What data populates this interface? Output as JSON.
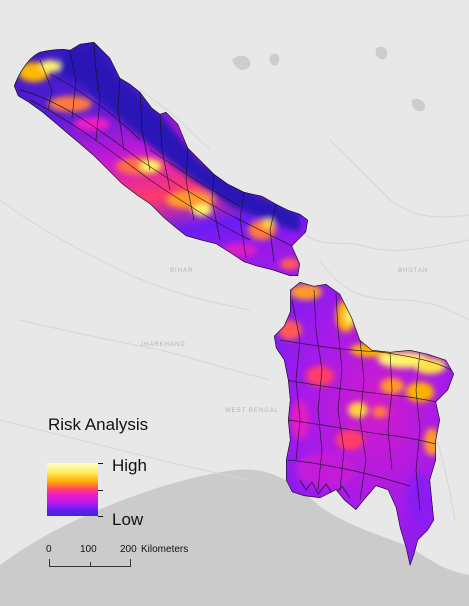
{
  "legend": {
    "title": "Risk Analysis",
    "high_label": "High",
    "low_label": "Low",
    "colors": [
      "#fffec8",
      "#fff26a",
      "#ffb300",
      "#ff3d6a",
      "#f01cc6",
      "#b21aee",
      "#6a1cf4",
      "#3f25d8"
    ]
  },
  "scale_bar": {
    "ticks": [
      "0",
      "100",
      "200"
    ],
    "unit": "Kilometers"
  },
  "basemap_labels": {
    "bhutan": "BHUTAN",
    "bihar": "BIHAR",
    "jharkhand": "JHARKHAND",
    "west_bengal": "WEST BENGAL"
  },
  "colors": {
    "water": "#cbcbcb",
    "land": "#e7e7e7",
    "low_risk": "#2a18b8",
    "high_risk": "#ffff7a"
  }
}
